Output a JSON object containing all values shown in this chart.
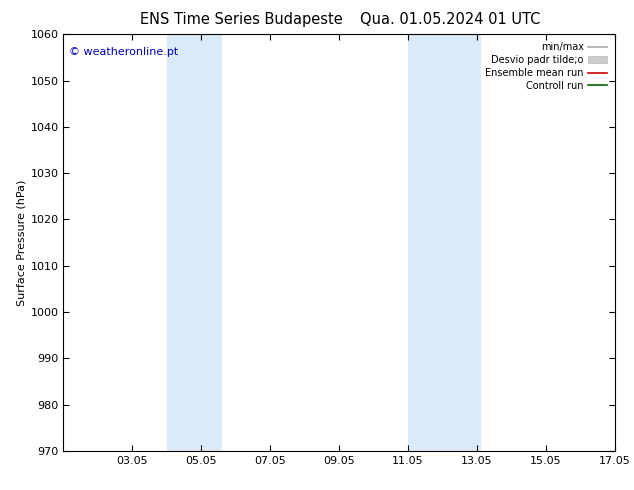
{
  "title_left": "ENS Time Series Budapeste",
  "title_right": "Qua. 01.05.2024 01 UTC",
  "ylabel": "Surface Pressure (hPa)",
  "ylim": [
    970,
    1060
  ],
  "yticks": [
    970,
    980,
    990,
    1000,
    1010,
    1020,
    1030,
    1040,
    1050,
    1060
  ],
  "xtick_labels": [
    "03.05",
    "05.05",
    "07.05",
    "09.05",
    "11.05",
    "13.05",
    "15.05",
    "17.05"
  ],
  "xtick_days": [
    3,
    5,
    7,
    9,
    11,
    13,
    15,
    17
  ],
  "xstart_day": 1,
  "xend_day": 17,
  "shaded_bands": [
    {
      "x_start": 4.0,
      "x_end": 5.6
    },
    {
      "x_start": 11.0,
      "x_end": 13.1
    }
  ],
  "shade_color": "#daeaf7",
  "watermark_text": "© weatheronline.pt",
  "watermark_color": "#0000bb",
  "legend_items": [
    {
      "label": "min/max",
      "color": "#aaaaaa",
      "lw": 1.2,
      "ls": "-",
      "type": "line"
    },
    {
      "label": "Desvio padr tilde;o",
      "color": "#cccccc",
      "lw": 6,
      "ls": "-",
      "type": "patch"
    },
    {
      "label": "Ensemble mean run",
      "color": "#cc0000",
      "lw": 1.2,
      "ls": "-",
      "type": "line"
    },
    {
      "label": "Controll run",
      "color": "#006600",
      "lw": 1.2,
      "ls": "-",
      "type": "line"
    }
  ],
  "background_color": "#ffffff",
  "axes_bg_color": "#ffffff",
  "title_fontsize": 10.5,
  "tick_fontsize": 8,
  "ylabel_fontsize": 8,
  "watermark_fontsize": 8
}
